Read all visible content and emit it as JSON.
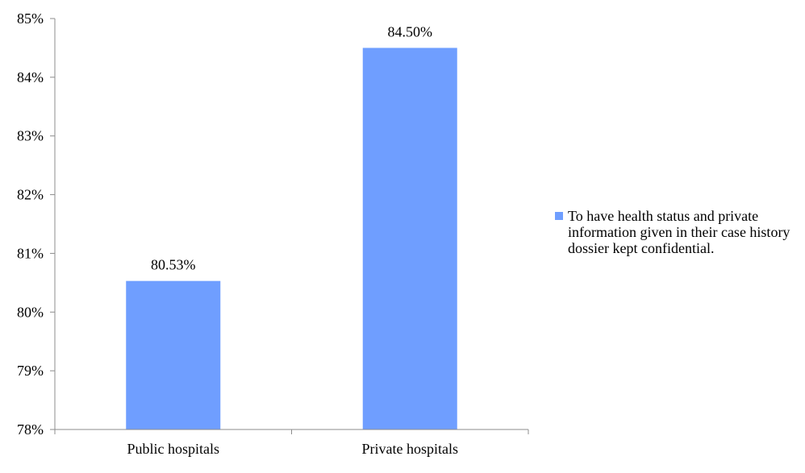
{
  "chart_data": {
    "type": "bar",
    "categories": [
      "Public hospitals",
      "Private hospitals"
    ],
    "series": [
      {
        "name": "To have health status and private information given in their case history dossier kept confidential.",
        "values": [
          80.53,
          84.5
        ],
        "data_labels": [
          "80.53%",
          "84.50%"
        ],
        "color": "#6f9eff"
      }
    ],
    "ylim": [
      78,
      85
    ],
    "y_ticks": [
      78,
      79,
      80,
      81,
      82,
      83,
      84,
      85
    ],
    "y_tick_labels": [
      "78%",
      "79%",
      "80%",
      "81%",
      "82%",
      "83%",
      "84%",
      "85%"
    ],
    "grid": false,
    "legend_position": "right",
    "title": "",
    "xlabel": "",
    "ylabel": ""
  }
}
